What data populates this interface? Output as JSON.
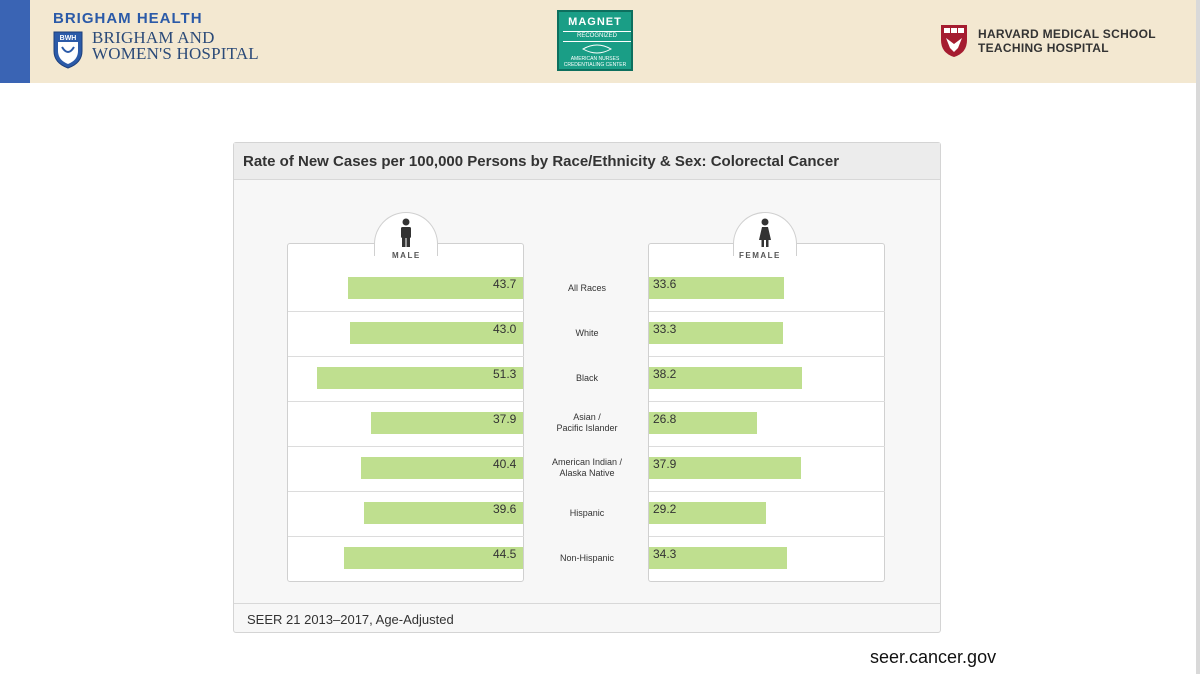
{
  "header": {
    "org_top": "BRIGHAM HEALTH",
    "shield_text": "BWH",
    "org_name_line1": "BRIGHAM AND",
    "org_name_line2": "WOMEN'S HOSPITAL",
    "magnet_title": "MAGNET",
    "magnet_sub": "RECOGNIZED",
    "magnet_org": "AMERICAN NURSES CREDENTIALING CENTER",
    "hms_line1": "HARVARD MEDICAL SCHOOL",
    "hms_line2": "TEACHING HOSPITAL",
    "colors": {
      "bwh_blue": "#3a64b4",
      "magnet_green": "#1a9e86",
      "hms_red": "#a51c30",
      "band": "#f3e8d1"
    }
  },
  "source": "seer.cancer.gov",
  "chart_data": {
    "type": "bar",
    "title": "Rate of New Cases per 100,000 Persons by Race/Ethnicity & Sex: Colorectal Cancer",
    "footnote": "SEER 21 2013–2017, Age-Adjusted",
    "categories": [
      [
        "All Races"
      ],
      [
        "White"
      ],
      [
        "Black"
      ],
      [
        "Asian /",
        "Pacific Islander"
      ],
      [
        "American Indian /",
        "Alaska Native"
      ],
      [
        "Hispanic"
      ],
      [
        "Non-Hispanic"
      ]
    ],
    "series": [
      {
        "name": "MALE",
        "icon": "male-person-icon",
        "values": [
          43.7,
          43.0,
          51.3,
          37.9,
          40.4,
          39.6,
          44.5
        ],
        "labels": [
          "43.7",
          "43.0",
          "51.3",
          "37.9",
          "40.4",
          "39.6",
          "44.5"
        ]
      },
      {
        "name": "FEMALE",
        "icon": "female-person-icon",
        "values": [
          33.6,
          33.3,
          38.2,
          26.8,
          37.9,
          29.2,
          34.3
        ],
        "labels": [
          "33.6",
          "33.3",
          "38.2",
          "26.8",
          "37.9",
          "29.2",
          "34.3"
        ]
      }
    ],
    "bar_color": "#bfdf8f",
    "xlim": [
      0,
      52
    ]
  }
}
